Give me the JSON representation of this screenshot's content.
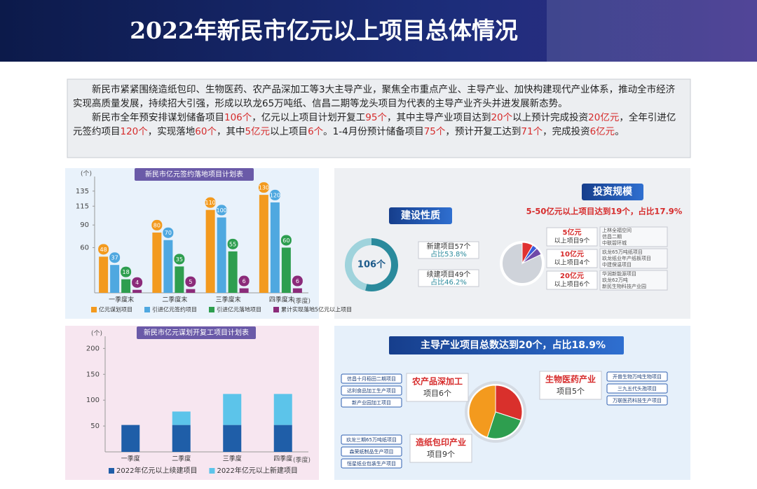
{
  "header": {
    "title": "2022年新民市亿元以上项目总体情况"
  },
  "intro": {
    "paragraphs": [
      [
        "新民市紧紧围绕造纸包印、生物医药、农产品深加工等3大主导产业，聚焦全市重点产业、主导产业、加快构建现代产业体系，推动全市经济实现高质量发展，持续招大引强，形成以玖龙65万吨纸、信昌二期等龙头项目为代表的主导产业齐头并进发展新态势。"
      ],
      [
        "新民市全年预安排谋划储备项目",
        "106个",
        "，亿元以上项目计划开复工",
        "95个",
        "，其中主导产业项目达到",
        "20个",
        "以上预计完成投资",
        "20亿元",
        "，全年引进亿元签约项目",
        "120个",
        "，实现落地",
        "60个",
        "，其中",
        "5亿元",
        "以上项目",
        "6个",
        "。1-4月份预计储备项目",
        "75个",
        "，预计开复工达到",
        "71个",
        "，完成投资",
        "6亿元",
        "。"
      ]
    ]
  },
  "chart_data": [
    {
      "type": "bar",
      "title": "新民市亿元签约落地项目计划表",
      "y_label": "(个)",
      "x_label": "(季度)",
      "categories": [
        "一季度末",
        "二季度末",
        "三季度末",
        "四季度末"
      ],
      "series": [
        {
          "name": "亿元谋划项目",
          "color": "#f39a1e",
          "values": [
            48,
            80,
            110,
            130
          ]
        },
        {
          "name": "引进亿元签约项目",
          "color": "#4fa8e0",
          "values": [
            37,
            70,
            100,
            120
          ]
        },
        {
          "name": "引进亿元落地项目",
          "color": "#2e9e4f",
          "values": [
            18,
            35,
            55,
            60
          ]
        },
        {
          "name": "累计实现落地5亿元以上项目",
          "color": "#8b2b7a",
          "values": [
            4,
            5,
            6,
            6
          ]
        }
      ],
      "ylim": [
        0,
        145
      ],
      "yticks": [
        60,
        90,
        115,
        135
      ]
    },
    {
      "type": "stacked_bar",
      "title": "新民市亿元谋划开复工项目计划表",
      "y_label": "(个)",
      "x_label": "(季度)",
      "categories": [
        "一季度",
        "二季度",
        "三季度",
        "四季度"
      ],
      "series": [
        {
          "name": "2022年亿元以上续建项目",
          "color": "#1f5ea8",
          "values": [
            52,
            52,
            52,
            52
          ]
        },
        {
          "name": "2022年亿元以上新建项目",
          "color": "#5cc4ea",
          "values": [
            0,
            26,
            60,
            60
          ]
        }
      ],
      "ylim": [
        0,
        210
      ],
      "yticks": [
        50,
        100,
        150,
        200
      ]
    }
  ],
  "construction": {
    "title": "建设性质",
    "total": "106个",
    "items": [
      {
        "name": "新建项目57个",
        "share": "占比53.8%",
        "value": 53.8,
        "color": "#2a8a9c"
      },
      {
        "name": "续建项目49个",
        "share": "占比46.2%",
        "value": 46.2,
        "color": "#9fd3dc"
      }
    ]
  },
  "investment": {
    "title": "投资规模",
    "summary": "5-50亿元以上项目达到19个，占比17.9%",
    "base": 106,
    "items": [
      {
        "amount": "5亿元",
        "count": "以上项目9个",
        "value": 9,
        "color": "#e03131",
        "projects": [
          "上林全福空间",
          "信昌二期",
          "中联碧环城"
        ]
      },
      {
        "amount": "10亿元",
        "count": "以上项目4个",
        "value": 4,
        "color": "#3b5bdb",
        "projects": [
          "玖龙65万吨纸项目",
          "玖龙纸业年产纸板项目",
          "中建保温项目"
        ]
      },
      {
        "amount": "20亿元",
        "count": "以上项目6个",
        "value": 6,
        "color": "#7048a8",
        "projects": [
          "华润新能源项目",
          "玖龙62万吨",
          "新民生物科技产业园"
        ]
      }
    ]
  },
  "industry": {
    "title": "主导产业项目总数达到20个，占比18.9%",
    "sectors": [
      {
        "name": "农产品深加工",
        "count": "项目6个",
        "value": 6,
        "color": "#d9302c",
        "projects": [
          "信昌十月稻田二期项目",
          "达利食品加工生产项目",
          "新产业园加工项目"
        ]
      },
      {
        "name": "生物医药产业",
        "count": "项目5个",
        "value": 5,
        "color": "#2e9e4f",
        "projects": [
          "开普生物万吨生物项目",
          "三九五代头孢项目",
          "万联医药科技生产项目"
        ]
      },
      {
        "name": "造纸包印产业",
        "count": "项目9个",
        "value": 9,
        "color": "#f39a1e",
        "projects": [
          "玖龙三期65万吨纸项目",
          "森荣纸制品生产项目",
          "恒星纸业包装生产项目"
        ]
      }
    ]
  }
}
